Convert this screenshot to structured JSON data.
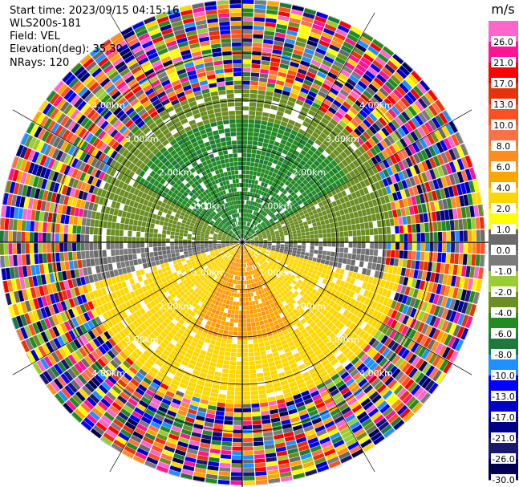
{
  "header": {
    "start_time": "Start time: 2023/09/15 04:15:16",
    "instrument": "WLS200s-181",
    "field": "Field: VEL",
    "elevation": "Elevation(deg): 35.30",
    "nrays": "NRays: 120"
  },
  "chart_data": {
    "type": "heatmap",
    "projection": "polar-ppi",
    "field": "VEL",
    "units": "m/s",
    "n_rays": 120,
    "elevation_deg": 35.3,
    "range_rings_km": [
      1.0,
      2.0,
      3.0,
      4.0
    ],
    "range_ring_labels": [
      "1.00km",
      "2.00km",
      "3.00km",
      "4.00km"
    ],
    "max_range_km": 5.6,
    "grid": true,
    "legend": "right",
    "sectors": [
      {
        "azimuth_from": 300,
        "azimuth_to": 60,
        "range_to_km": 2.6,
        "value": -5.5
      },
      {
        "azimuth_from": 270,
        "azimuth_to": 90,
        "range_to_km": 3.2,
        "value": -3.0
      },
      {
        "azimuth_from": 75,
        "azimuth_to": 105,
        "range_to_km": 3.0,
        "value": 0.0
      },
      {
        "azimuth_from": 255,
        "azimuth_to": 285,
        "range_to_km": 3.4,
        "value": 0.0
      },
      {
        "azimuth_from": 150,
        "azimuth_to": 210,
        "range_to_km": 2.0,
        "value": 5.5
      },
      {
        "azimuth_from": 100,
        "azimuth_to": 260,
        "range_to_km": 3.4,
        "value": 3.0
      },
      {
        "azimuth_from": 0,
        "azimuth_to": 360,
        "range_to_km": 5.6,
        "value": "noise"
      }
    ],
    "colorbar": {
      "ticks": [
        "26.0",
        "21.0",
        "17.0",
        "13.0",
        "10.0",
        "8.0",
        "6.0",
        "4.0",
        "2.0",
        "1.0",
        "0.0",
        "-1.0",
        "-2.0",
        "-4.0",
        "-6.0",
        "-8.0",
        "-10.0",
        "-13.0",
        "-17.0",
        "-21.0",
        "-26.0",
        "-30.0"
      ],
      "values": [
        30,
        26,
        21,
        17,
        13,
        10,
        8,
        6,
        4,
        2,
        1,
        0,
        -1,
        -2,
        -4,
        -6,
        -8,
        -10,
        -13,
        -17,
        -21,
        -26,
        -30
      ],
      "colors": [
        "#ff66cc",
        "#ff1493",
        "#ff0000",
        "#e8320a",
        "#ff5020",
        "#ff7045",
        "#ff8c1e",
        "#ffa500",
        "#ffd700",
        "#ffff00",
        "#6a6a6a",
        "#7b7b7b",
        "#9acd32",
        "#6b8e23",
        "#228b22",
        "#1c7a3a",
        "#1e90ff",
        "#0000ff",
        "#0000cd",
        "#00008b",
        "#191970",
        "#000055"
      ]
    }
  }
}
